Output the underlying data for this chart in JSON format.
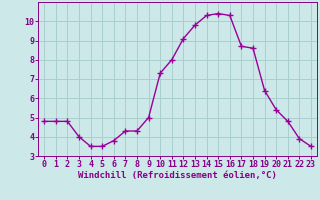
{
  "x": [
    0,
    1,
    2,
    3,
    4,
    5,
    6,
    7,
    8,
    9,
    10,
    11,
    12,
    13,
    14,
    15,
    16,
    17,
    18,
    19,
    20,
    21,
    22,
    23
  ],
  "y": [
    4.8,
    4.8,
    4.8,
    4.0,
    3.5,
    3.5,
    3.8,
    4.3,
    4.3,
    5.0,
    7.3,
    8.0,
    9.1,
    9.8,
    10.3,
    10.4,
    10.3,
    8.7,
    8.6,
    6.4,
    5.4,
    4.8,
    3.9,
    3.5
  ],
  "line_color": "#990099",
  "marker": "+",
  "markersize": 4,
  "linewidth": 1.0,
  "bg_color": "#cce8e8",
  "grid_color": "#aacece",
  "xlabel": "Windchill (Refroidissement éolien,°C)",
  "xlim": [
    -0.5,
    23.5
  ],
  "ylim": [
    3,
    11
  ],
  "yticks": [
    3,
    4,
    5,
    6,
    7,
    8,
    9,
    10
  ],
  "xticks": [
    0,
    1,
    2,
    3,
    4,
    5,
    6,
    7,
    8,
    9,
    10,
    11,
    12,
    13,
    14,
    15,
    16,
    17,
    18,
    19,
    20,
    21,
    22,
    23
  ],
  "xlabel_fontsize": 6.5,
  "tick_fontsize": 6.0,
  "tick_color": "#880088",
  "axis_label_color": "#880088",
  "spine_color": "#880088"
}
